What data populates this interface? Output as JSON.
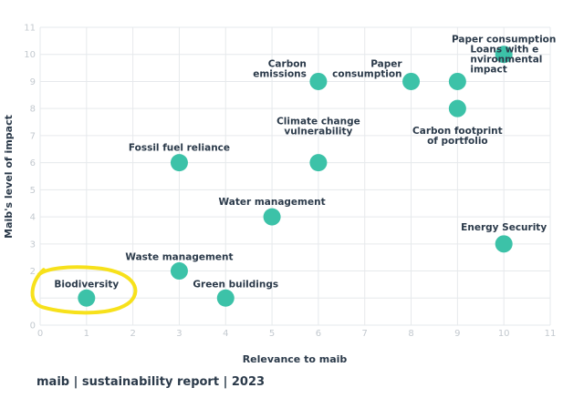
{
  "chart_data": {
    "type": "scatter",
    "xlabel": "Relevance to maib",
    "ylabel": "Maib's level of impact",
    "xlim": [
      0,
      11
    ],
    "ylim": [
      0,
      11
    ],
    "grid": true,
    "marker_color": "#3cc2a8",
    "points": [
      {
        "label": [
          "Paper consumption"
        ],
        "x": 10,
        "y": 10
      },
      {
        "label": [
          "Carbon",
          "emissions"
        ],
        "x": 6,
        "y": 9
      },
      {
        "label": [
          "Paper",
          "consumption"
        ],
        "x": 8,
        "y": 9
      },
      {
        "label": [
          "Loans with e",
          "nvironmental",
          "impact"
        ],
        "x": 9,
        "y": 9
      },
      {
        "label": [
          "Carbon footprint",
          "of portfolio"
        ],
        "x": 9,
        "y": 8
      },
      {
        "label": [
          "Climate change",
          "vulnerability"
        ],
        "x": 6,
        "y": 6
      },
      {
        "label": [
          "Fossil fuel reliance"
        ],
        "x": 3,
        "y": 6
      },
      {
        "label": [
          "Water management"
        ],
        "x": 5,
        "y": 4
      },
      {
        "label": [
          "Energy Security"
        ],
        "x": 10,
        "y": 3
      },
      {
        "label": [
          "Waste management"
        ],
        "x": 3,
        "y": 2
      },
      {
        "label": [
          "Biodiversity"
        ],
        "x": 1,
        "y": 1,
        "highlighted": true
      },
      {
        "label": [
          "Green buildings"
        ],
        "x": 4,
        "y": 1
      }
    ],
    "highlight_color": "#f7e11b"
  },
  "footer": "maib | sustainability report | 2023"
}
